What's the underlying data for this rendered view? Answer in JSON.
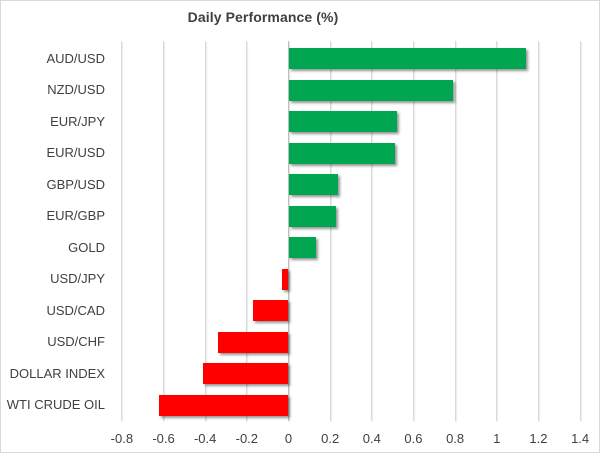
{
  "chart": {
    "title": "Daily Performance (%)"
  },
  "chart_data": {
    "type": "bar",
    "orientation": "horizontal",
    "title": "Daily Performance (%)",
    "categories": [
      "AUD/USD",
      "NZD/USD",
      "EUR/JPY",
      "EUR/USD",
      "GBP/USD",
      "EUR/GBP",
      "GOLD",
      "USD/JPY",
      "USD/CAD",
      "USD/CHF",
      "DOLLAR INDEX",
      "WTI CRUDE OIL"
    ],
    "values": [
      1.14,
      0.79,
      0.52,
      0.51,
      0.24,
      0.23,
      0.13,
      -0.03,
      -0.17,
      -0.34,
      -0.41,
      -0.62
    ],
    "xlabel": "",
    "ylabel": "",
    "xlim": [
      -0.8,
      1.4
    ],
    "x_ticks": [
      -0.8,
      -0.6,
      -0.4,
      -0.2,
      0,
      0.2,
      0.4,
      0.6,
      0.8,
      1,
      1.2,
      1.4
    ],
    "x_tick_labels": [
      "-0.8",
      "-0.6",
      "-0.4",
      "-0.2",
      "0",
      "0.2",
      "0.4",
      "0.6",
      "0.8",
      "1",
      "1.2",
      "1.4"
    ],
    "grid": true,
    "legend": false,
    "bar_shadow": true,
    "colors": {
      "positive": "#00a650",
      "negative": "#ff0000",
      "gridline": "#d9d9d9",
      "zero_axis": "#bfbfbf",
      "text": "#404040",
      "border": "#d9d9d9",
      "background": "#ffffff"
    }
  }
}
